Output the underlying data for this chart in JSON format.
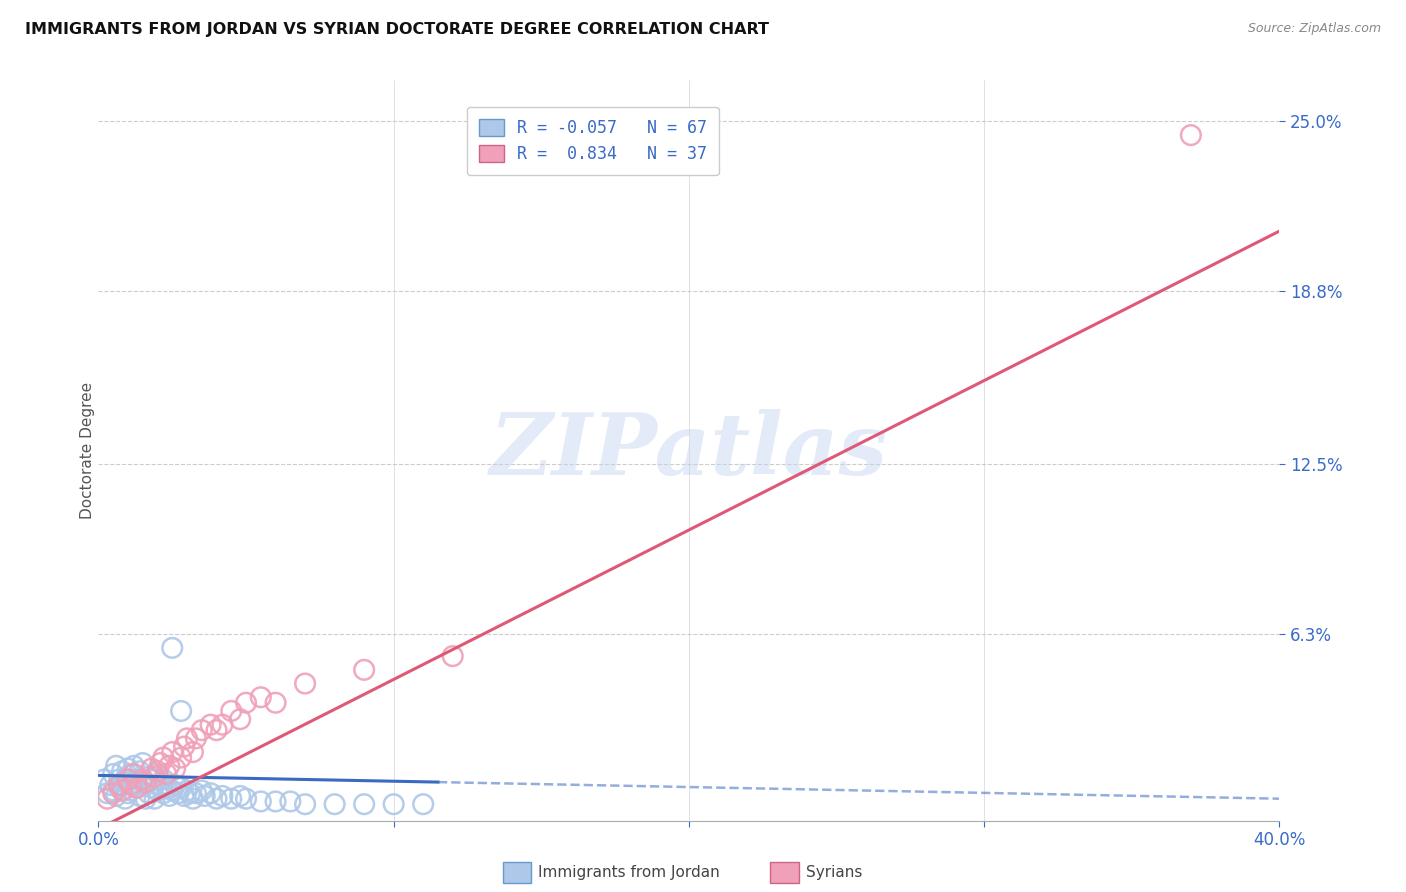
{
  "title": "IMMIGRANTS FROM JORDAN VS SYRIAN DOCTORATE DEGREE CORRELATION CHART",
  "source": "Source: ZipAtlas.com",
  "ylabel": "Doctorate Degree",
  "ytick_labels": [
    "6.3%",
    "12.5%",
    "18.8%",
    "25.0%"
  ],
  "ytick_values": [
    0.063,
    0.125,
    0.188,
    0.25
  ],
  "xlim": [
    0.0,
    0.4
  ],
  "ylim": [
    -0.005,
    0.265
  ],
  "legend_jordan_R": "-0.057",
  "legend_jordan_N": "67",
  "legend_syrian_R": "0.834",
  "legend_syrian_N": "37",
  "jordan_color": "#adc8e8",
  "syrian_color": "#f0a0b8",
  "jordan_line_color": "#3a6bc0",
  "syrian_line_color": "#e05878",
  "watermark_text": "ZIPatlas",
  "bg_color": "#ffffff",
  "grid_color": "#cccccc",
  "jordan_scatter_x": [
    0.002,
    0.003,
    0.004,
    0.005,
    0.005,
    0.006,
    0.006,
    0.007,
    0.007,
    0.008,
    0.008,
    0.009,
    0.009,
    0.01,
    0.01,
    0.01,
    0.011,
    0.011,
    0.012,
    0.012,
    0.013,
    0.013,
    0.014,
    0.014,
    0.015,
    0.015,
    0.016,
    0.016,
    0.017,
    0.017,
    0.018,
    0.019,
    0.019,
    0.02,
    0.02,
    0.021,
    0.022,
    0.022,
    0.023,
    0.024,
    0.025,
    0.026,
    0.027,
    0.028,
    0.029,
    0.03,
    0.031,
    0.032,
    0.033,
    0.035,
    0.036,
    0.038,
    0.04,
    0.042,
    0.045,
    0.048,
    0.05,
    0.055,
    0.06,
    0.065,
    0.07,
    0.08,
    0.09,
    0.1,
    0.11,
    0.025,
    0.028
  ],
  "jordan_scatter_y": [
    0.01,
    0.005,
    0.008,
    0.012,
    0.006,
    0.015,
    0.004,
    0.007,
    0.01,
    0.008,
    0.013,
    0.01,
    0.003,
    0.014,
    0.01,
    0.005,
    0.012,
    0.006,
    0.009,
    0.015,
    0.01,
    0.007,
    0.013,
    0.004,
    0.009,
    0.016,
    0.008,
    0.003,
    0.011,
    0.005,
    0.007,
    0.01,
    0.003,
    0.006,
    0.012,
    0.008,
    0.005,
    0.01,
    0.007,
    0.004,
    0.006,
    0.008,
    0.005,
    0.007,
    0.004,
    0.006,
    0.005,
    0.003,
    0.005,
    0.006,
    0.004,
    0.005,
    0.003,
    0.004,
    0.003,
    0.004,
    0.003,
    0.002,
    0.002,
    0.002,
    0.001,
    0.001,
    0.001,
    0.001,
    0.001,
    0.058,
    0.035
  ],
  "syrian_scatter_x": [
    0.003,
    0.005,
    0.007,
    0.008,
    0.01,
    0.011,
    0.012,
    0.013,
    0.015,
    0.016,
    0.018,
    0.019,
    0.02,
    0.021,
    0.022,
    0.023,
    0.024,
    0.025,
    0.026,
    0.028,
    0.029,
    0.03,
    0.032,
    0.033,
    0.035,
    0.038,
    0.04,
    0.042,
    0.045,
    0.048,
    0.05,
    0.055,
    0.06,
    0.07,
    0.09,
    0.12,
    0.37
  ],
  "syrian_scatter_y": [
    0.003,
    0.005,
    0.008,
    0.006,
    0.01,
    0.008,
    0.012,
    0.007,
    0.01,
    0.009,
    0.014,
    0.011,
    0.013,
    0.016,
    0.018,
    0.012,
    0.015,
    0.02,
    0.014,
    0.018,
    0.022,
    0.025,
    0.02,
    0.025,
    0.028,
    0.03,
    0.028,
    0.03,
    0.035,
    0.032,
    0.038,
    0.04,
    0.038,
    0.045,
    0.05,
    0.055,
    0.245
  ],
  "jordan_line_x0": 0.0,
  "jordan_line_y0": 0.0115,
  "jordan_line_x1": 0.4,
  "jordan_line_y1": 0.003,
  "jordan_line_solid_end": 0.115,
  "syrian_line_x0": 0.0,
  "syrian_line_y0": -0.008,
  "syrian_line_x1": 0.4,
  "syrian_line_y1": 0.21
}
